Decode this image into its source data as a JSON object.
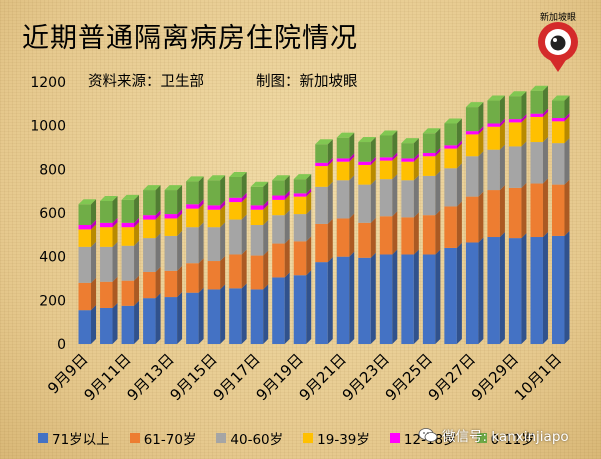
{
  "title": "近期普通隔离病房住院情况",
  "source": "资料来源：卫生部",
  "producer": "制图：新加坡眼",
  "logo_text": "新加坡眼",
  "watermark": "微信号: kanxinjiapo",
  "chart_data": {
    "type": "stacked-bar",
    "categories": [
      "9月9日",
      "9月10日",
      "9月11日",
      "9月12日",
      "9月13日",
      "9月14日",
      "9月15日",
      "9月16日",
      "9月17日",
      "9月18日",
      "9月19日",
      "9月20日",
      "9月21日",
      "9月22日",
      "9月23日",
      "9月24日",
      "9月25日",
      "9月26日",
      "9月27日",
      "9月28日",
      "9月29日",
      "9月30日",
      "10月1日"
    ],
    "x_tick_labels": [
      "9月9日",
      "",
      "9月11日",
      "",
      "9月13日",
      "",
      "9月15日",
      "",
      "9月17日",
      "",
      "9月19日",
      "",
      "9月21日",
      "",
      "9月23日",
      "",
      "9月25日",
      "",
      "9月27日",
      "",
      "9月29日",
      "",
      "10月1日"
    ],
    "y_ticks": [
      0,
      200,
      400,
      600,
      800,
      1000,
      1200
    ],
    "ylim": [
      0,
      1200
    ],
    "legend_position": "bottom",
    "series": [
      {
        "name": "71岁以上",
        "color": "#4472c4",
        "values": [
          155,
          165,
          175,
          210,
          215,
          235,
          250,
          255,
          250,
          305,
          315,
          375,
          400,
          395,
          410,
          410,
          410,
          440,
          465,
          490,
          485,
          490,
          495
        ]
      },
      {
        "name": "61-70岁",
        "color": "#ed7d31",
        "values": [
          125,
          120,
          115,
          120,
          120,
          135,
          130,
          155,
          155,
          155,
          155,
          175,
          175,
          160,
          175,
          170,
          180,
          190,
          210,
          215,
          230,
          245,
          235
        ]
      },
      {
        "name": "40-60岁",
        "color": "#a5a5a5",
        "values": [
          165,
          160,
          160,
          155,
          160,
          165,
          155,
          160,
          140,
          130,
          125,
          170,
          175,
          175,
          170,
          170,
          180,
          175,
          185,
          185,
          190,
          190,
          190
        ]
      },
      {
        "name": "19-39岁",
        "color": "#ffc000",
        "values": [
          80,
          90,
          85,
          85,
          80,
          85,
          80,
          80,
          70,
          70,
          80,
          95,
          85,
          90,
          85,
          85,
          90,
          90,
          100,
          105,
          110,
          115,
          100
        ]
      },
      {
        "name": "12-18岁",
        "color": "#ff00ff",
        "values": [
          20,
          20,
          20,
          20,
          20,
          20,
          20,
          20,
          20,
          20,
          15,
          15,
          15,
          15,
          15,
          15,
          15,
          15,
          15,
          15,
          15,
          15,
          15
        ]
      },
      {
        "name": "0-11岁",
        "color": "#70ad47",
        "values": [
          95,
          100,
          105,
          115,
          110,
          105,
          115,
          95,
          85,
          70,
          65,
          85,
          95,
          90,
          100,
          70,
          90,
          100,
          110,
          105,
          105,
          105,
          80
        ]
      }
    ]
  }
}
